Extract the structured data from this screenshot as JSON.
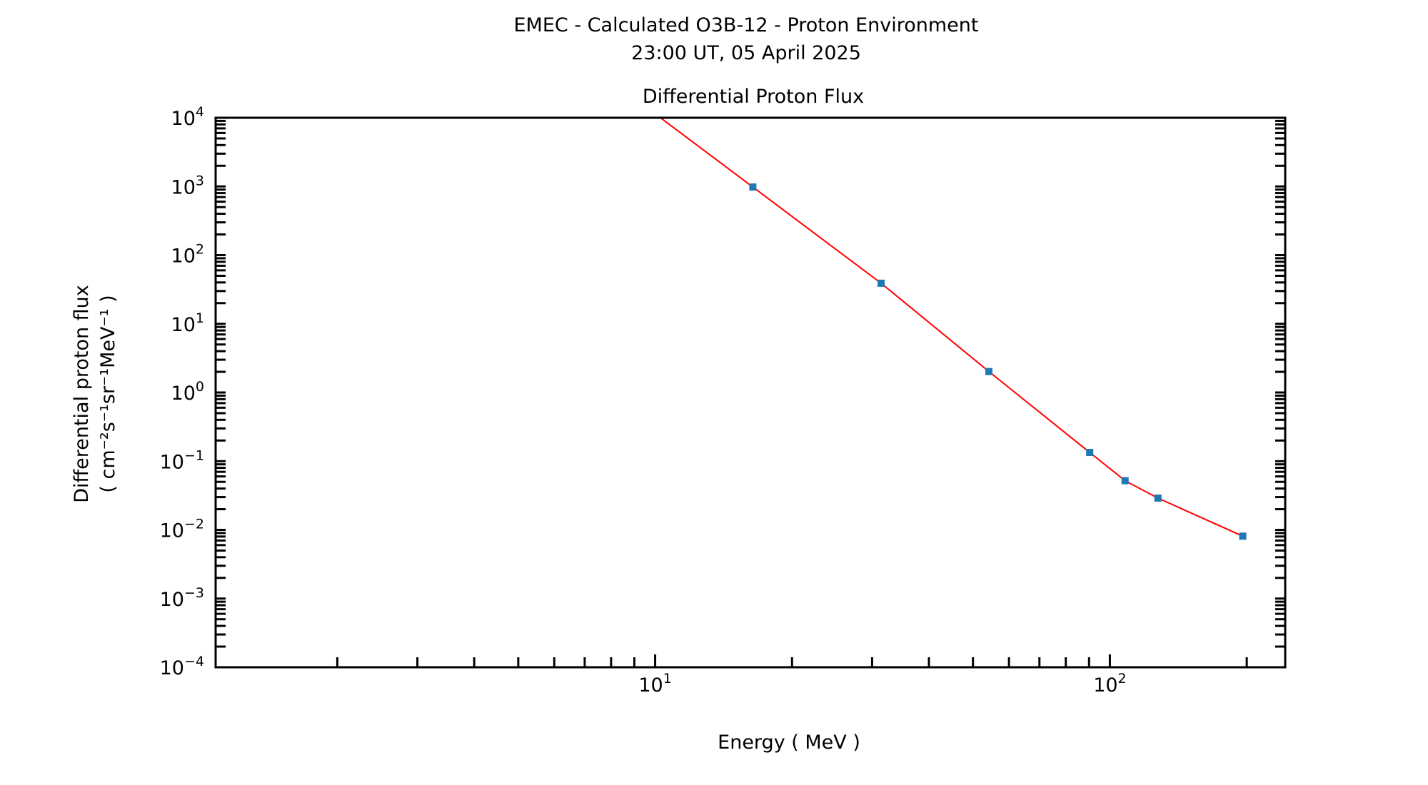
{
  "chart_data": {
    "type": "line",
    "title": "EMEC - Calculated O3B-12 - Proton Environment",
    "subtitle": "23:00 UT, 05 April 2025",
    "axes_title": "Differential Proton Flux",
    "xlabel": "Energy ( MeV )",
    "ylabel_line1": "Differential proton flux",
    "ylabel_line2": "( cm⁻²s⁻¹sr⁻¹MeV⁻¹ )",
    "xscale": "log",
    "yscale": "log",
    "xlim": [
      1.08,
      243
    ],
    "ylim": [
      0.0001,
      10000
    ],
    "x_ticks": [
      {
        "value": 10,
        "label": "10",
        "exp": "1"
      },
      {
        "value": 100,
        "label": "10",
        "exp": "2"
      }
    ],
    "y_ticks": [
      {
        "value": 10000,
        "label": "10",
        "exp": "4"
      },
      {
        "value": 1000,
        "label": "10",
        "exp": "3"
      },
      {
        "value": 100,
        "label": "10",
        "exp": "2"
      },
      {
        "value": 10,
        "label": "10",
        "exp": "1"
      },
      {
        "value": 1,
        "label": "10",
        "exp": "0"
      },
      {
        "value": 0.1,
        "label": "10",
        "exp": "−1"
      },
      {
        "value": 0.01,
        "label": "10",
        "exp": "−2"
      },
      {
        "value": 0.001,
        "label": "10",
        "exp": "−3"
      },
      {
        "value": 0.0001,
        "label": "10",
        "exp": "−4"
      }
    ],
    "grid": false,
    "line_color": "#ff0000",
    "marker_color": "#1f77b4",
    "series": [
      {
        "x": [
          16.4,
          31.4,
          54.2,
          90.3,
          108,
          127.6,
          196
        ],
        "y": [
          980,
          39,
          2.02,
          0.134,
          0.052,
          0.029,
          0.0081
        ]
      }
    ]
  }
}
